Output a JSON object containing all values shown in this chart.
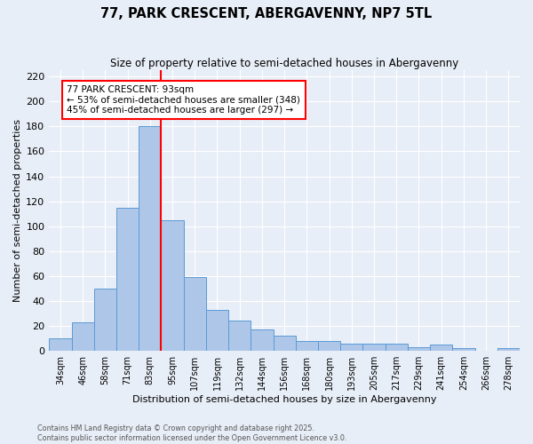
{
  "title": "77, PARK CRESCENT, ABERGAVENNY, NP7 5TL",
  "subtitle": "Size of property relative to semi-detached houses in Abergavenny",
  "xlabel": "Distribution of semi-detached houses by size in Abergavenny",
  "ylabel": "Number of semi-detached properties",
  "bin_labels": [
    "34sqm",
    "46sqm",
    "58sqm",
    "71sqm",
    "83sqm",
    "95sqm",
    "107sqm",
    "119sqm",
    "132sqm",
    "144sqm",
    "156sqm",
    "168sqm",
    "180sqm",
    "193sqm",
    "205sqm",
    "217sqm",
    "229sqm",
    "241sqm",
    "254sqm",
    "266sqm",
    "278sqm"
  ],
  "bar_values": [
    10,
    23,
    50,
    115,
    180,
    105,
    59,
    33,
    24,
    17,
    12,
    8,
    8,
    6,
    6,
    6,
    3,
    5,
    2,
    0,
    2
  ],
  "bar_color": "#aec6e8",
  "bar_edge_color": "#5b9bd5",
  "background_color": "#e8eef7",
  "grid_color": "#ffffff",
  "vline_index": 4.5,
  "vline_color": "red",
  "annotation_title": "77 PARK CRESCENT: 93sqm",
  "annotation_line1": "← 53% of semi-detached houses are smaller (348)",
  "annotation_line2": "45% of semi-detached houses are larger (297) →",
  "annotation_box_color": "white",
  "annotation_box_edge": "red",
  "ylim": [
    0,
    225
  ],
  "yticks": [
    0,
    20,
    40,
    60,
    80,
    100,
    120,
    140,
    160,
    180,
    200,
    220
  ],
  "footer_line1": "Contains HM Land Registry data © Crown copyright and database right 2025.",
  "footer_line2": "Contains public sector information licensed under the Open Government Licence v3.0."
}
